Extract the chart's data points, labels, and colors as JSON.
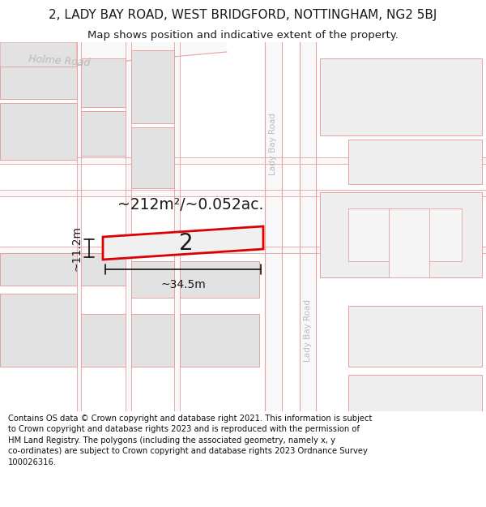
{
  "title_line1": "2, LADY BAY ROAD, WEST BRIDGFORD, NOTTINGHAM, NG2 5BJ",
  "title_line2": "Map shows position and indicative extent of the property.",
  "footer_text": "Contains OS data © Crown copyright and database right 2021. This information is subject to Crown copyright and database rights 2023 and is reproduced with the permission of HM Land Registry. The polygons (including the associated geometry, namely x, y co-ordinates) are subject to Crown copyright and database rights 2023 Ordnance Survey 100026316.",
  "map_bg": "#ebebeb",
  "road_fill": "#f8f8f8",
  "road_stroke": "#e8a0a0",
  "building_fill": "#e2e2e2",
  "building_fill_light": "#eeeeee",
  "highlight_color": "#dd0000",
  "highlight_fill": "#f0f0f0",
  "text_color": "#1a1a1a",
  "dim_color": "#111111",
  "road_label_color": "#aaaaaa",
  "area_label": "~212m²/~0.052ac.",
  "width_label": "~34.5m",
  "height_label": "~11.2m",
  "property_number": "2",
  "road_name_top": "Holme Road",
  "road_name_right_top": "Lady Bay Road",
  "road_name_right_bot": "Lady Bay Road",
  "title_fontsize": 11,
  "subtitle_fontsize": 9.5,
  "footer_fontsize": 7.2
}
